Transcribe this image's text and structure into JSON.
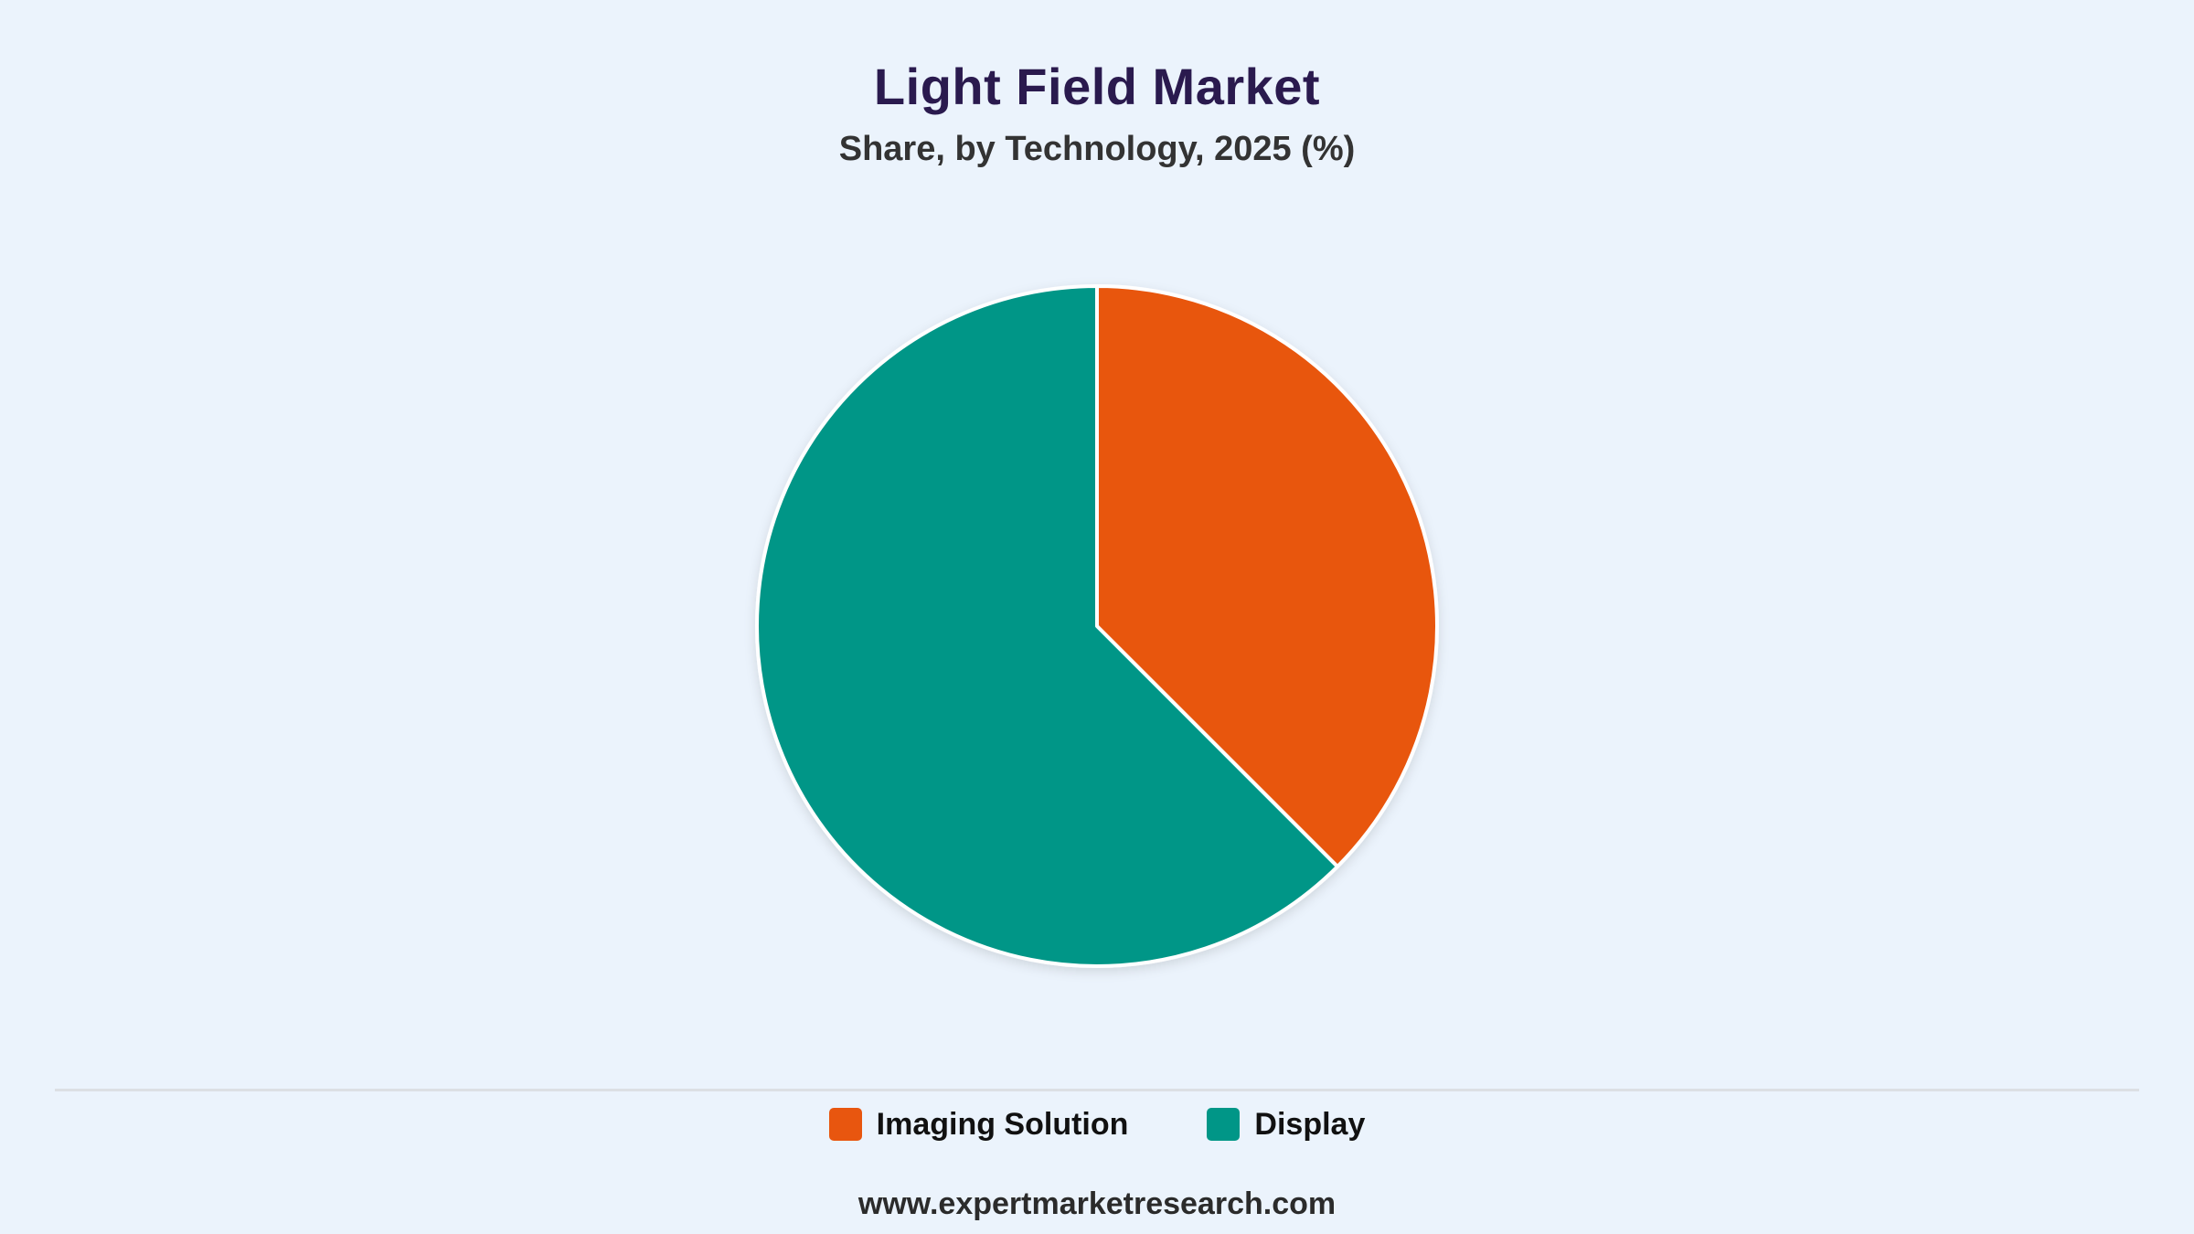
{
  "header": {
    "title": "Light Field Market",
    "subtitle": "Share, by Technology, 2025 (%)"
  },
  "chart_data": {
    "type": "pie",
    "title": "Light Field Market",
    "subtitle": "Share, by Technology, 2025 (%)",
    "categories": [
      "Imaging Solution",
      "Display"
    ],
    "values": [
      37.5,
      62.5
    ],
    "colors": [
      "#e8560f",
      "#009687"
    ],
    "start_angle_deg": 0,
    "direction": "clockwise",
    "legend": "bottom-center",
    "data_labels": false
  },
  "legend": {
    "items": [
      {
        "label": "Imaging Solution",
        "color": "#e8560f"
      },
      {
        "label": "Display",
        "color": "#009687"
      }
    ]
  },
  "footer": {
    "source": "www.expertmarketresearch.com"
  }
}
